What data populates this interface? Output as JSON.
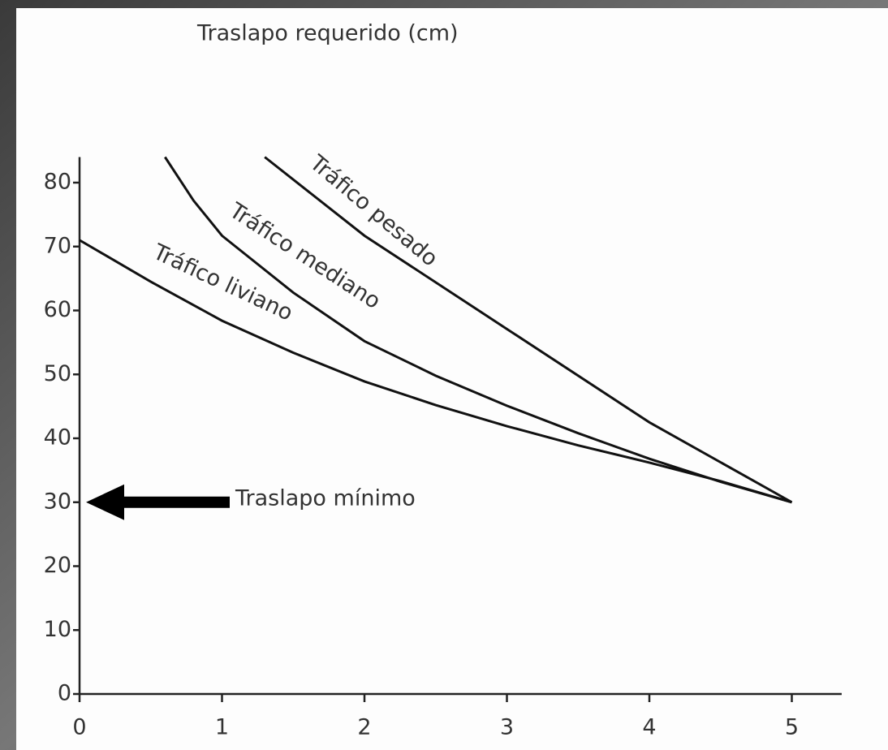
{
  "chart_data": {
    "type": "line",
    "title": "Traslapo requerido (cm)",
    "xlim": [
      0,
      5.35
    ],
    "ylim": [
      0,
      84
    ],
    "xticks": [
      0,
      1,
      2,
      3,
      4,
      5
    ],
    "yticks": [
      0,
      10,
      20,
      30,
      40,
      50,
      60,
      70,
      80
    ],
    "series": [
      {
        "name": "Tráfico liviano",
        "color": "#111111",
        "x": [
          0,
          0.5,
          1,
          1.5,
          2,
          2.5,
          3,
          3.5,
          4,
          4.5,
          5
        ],
        "values": [
          71,
          64.5,
          58.4,
          53.4,
          48.9,
          45.2,
          41.9,
          38.9,
          36.2,
          33.3,
          30
        ]
      },
      {
        "name": "Tráfico mediano",
        "color": "#111111",
        "x": [
          0.6,
          0.8,
          1,
          1.5,
          2,
          2.5,
          3,
          3.5,
          4,
          4.5,
          5
        ],
        "values": [
          84,
          77.2,
          71.7,
          62.8,
          55.2,
          49.8,
          45.1,
          40.8,
          36.8,
          33.2,
          30
        ]
      },
      {
        "name": "Tráfico pesado",
        "color": "#111111",
        "x": [
          1.3,
          2,
          3,
          4,
          5
        ],
        "values": [
          84,
          71.7,
          57.1,
          42.5,
          30
        ]
      }
    ],
    "annotations": [
      {
        "text": "Traslapo mínimo",
        "y": 30
      }
    ]
  }
}
